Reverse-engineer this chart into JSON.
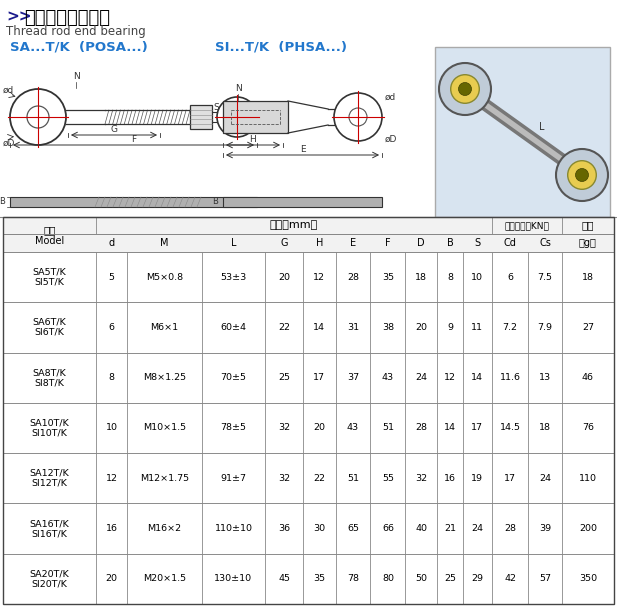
{
  "title_arrow": ">>",
  "title_cn": " 连杆关节轴承系列",
  "title_en": "    Thread rod end bearing",
  "subtitle_left": "SA...T/K  (POSA...)",
  "subtitle_right": "SI...T/K  (PHSA...)",
  "rows": [
    [
      "SA5T/K\nSI5T/K",
      "5",
      "M5×0.8",
      "53±3",
      "20",
      "12",
      "28",
      "35",
      "18",
      "8",
      "10",
      "6",
      "7.5",
      "18"
    ],
    [
      "SA6T/K\nSI6T/K",
      "6",
      "M6×1",
      "60±4",
      "22",
      "14",
      "31",
      "38",
      "20",
      "9",
      "11",
      "7.2",
      "7.9",
      "27"
    ],
    [
      "SA8T/K\nSI8T/K",
      "8",
      "M8×1.25",
      "70±5",
      "25",
      "17",
      "37",
      "43",
      "24",
      "12",
      "14",
      "11.6",
      "13",
      "46"
    ],
    [
      "SA10T/K\nSI10T/K",
      "10",
      "M10×1.5",
      "78±5",
      "32",
      "20",
      "43",
      "51",
      "28",
      "14",
      "17",
      "14.5",
      "18",
      "76"
    ],
    [
      "SA12T/K\nSI12T/K",
      "12",
      "M12×1.75",
      "91±7",
      "32",
      "22",
      "51",
      "55",
      "32",
      "16",
      "19",
      "17",
      "24",
      "110"
    ],
    [
      "SA16T/K\nSI16T/K",
      "16",
      "M16×2",
      "110±10",
      "36",
      "30",
      "65",
      "66",
      "40",
      "21",
      "24",
      "28",
      "39",
      "200"
    ],
    [
      "SA20T/K\nSI20T/K",
      "20",
      "M20×1.5",
      "130±10",
      "45",
      "35",
      "78",
      "80",
      "50",
      "25",
      "29",
      "42",
      "57",
      "350"
    ]
  ],
  "bg_color": "#ffffff",
  "border_color": "#888888",
  "subtitle_color": "#2277cc",
  "title_color": "#1a1a8c",
  "photo_bg": "#d8e4f0"
}
